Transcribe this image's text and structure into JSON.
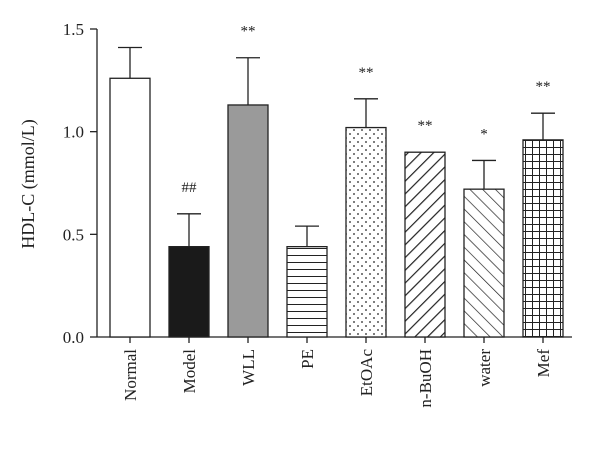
{
  "chart_data": {
    "type": "bar",
    "title": "",
    "xlabel": "",
    "ylabel": "HDL-C (mmol/L)",
    "ylim": [
      0,
      1.5
    ],
    "yticks": [
      "0.0",
      "0.5",
      "1.0",
      "1.5"
    ],
    "grid": false,
    "categories": [
      "Normal",
      "Model",
      "WLL",
      "PE",
      "EtOAc",
      "n-BuOH",
      "water",
      "Mef"
    ],
    "values": [
      1.26,
      0.44,
      1.13,
      0.44,
      1.02,
      0.9,
      0.72,
      0.96
    ],
    "errors": [
      0.15,
      0.16,
      0.23,
      0.1,
      0.14,
      0.0,
      0.14,
      0.13
    ],
    "annotations": [
      "",
      "##",
      "**",
      "",
      "**",
      "**",
      "*",
      "**"
    ],
    "fills": [
      "white",
      "solid-black",
      "solid-gray",
      "horizontal-lines",
      "dots",
      "diagonal-up",
      "diagonal-down",
      "grid"
    ],
    "colors": {
      "axis": "#222222",
      "black_bar": "#1a1a1a",
      "gray_bar": "#9a9a9a"
    }
  }
}
